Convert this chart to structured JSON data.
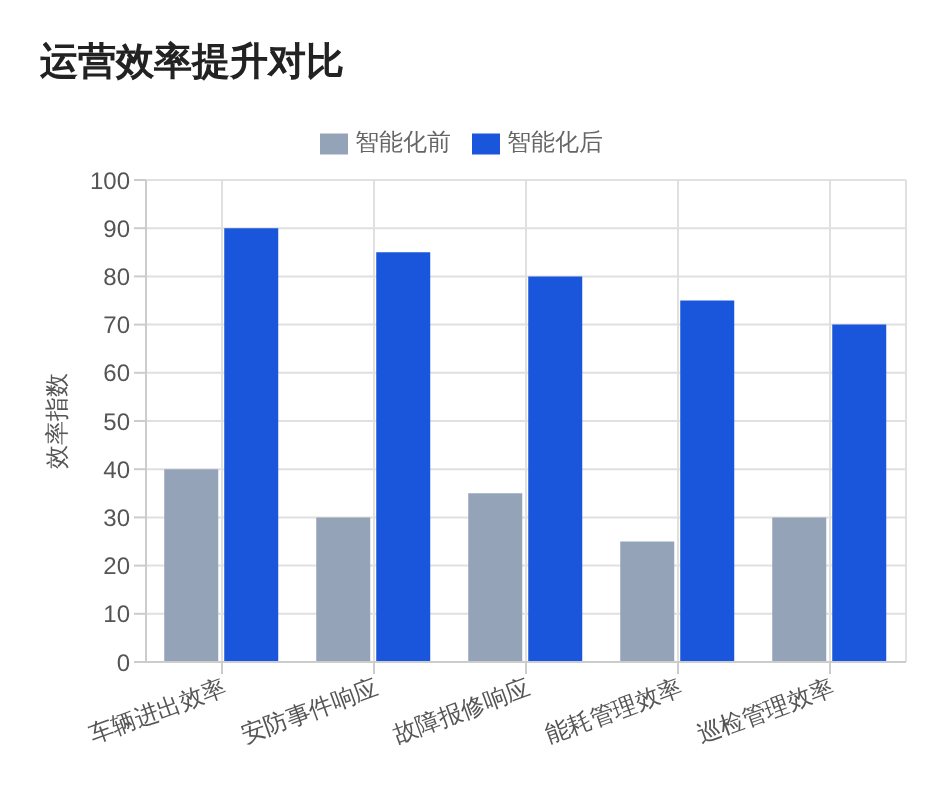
{
  "chart_data": {
    "type": "bar",
    "title": "运营效率提升对比",
    "ylabel": "效率指数",
    "categories": [
      "车辆进出效率",
      "安防事件响应",
      "故障报修响应",
      "能耗管理效率",
      "巡检管理效率"
    ],
    "series": [
      {
        "name": "智能化前",
        "color": "#94a3b8",
        "values": [
          40,
          30,
          35,
          25,
          30
        ]
      },
      {
        "name": "智能化后",
        "color": "#1a56db",
        "values": [
          90,
          85,
          80,
          75,
          70
        ]
      }
    ],
    "ylim": [
      0,
      100
    ],
    "yticks": [
      0,
      10,
      20,
      30,
      40,
      50,
      60,
      70,
      80,
      90,
      100
    ],
    "grid": true,
    "legend": "top"
  }
}
